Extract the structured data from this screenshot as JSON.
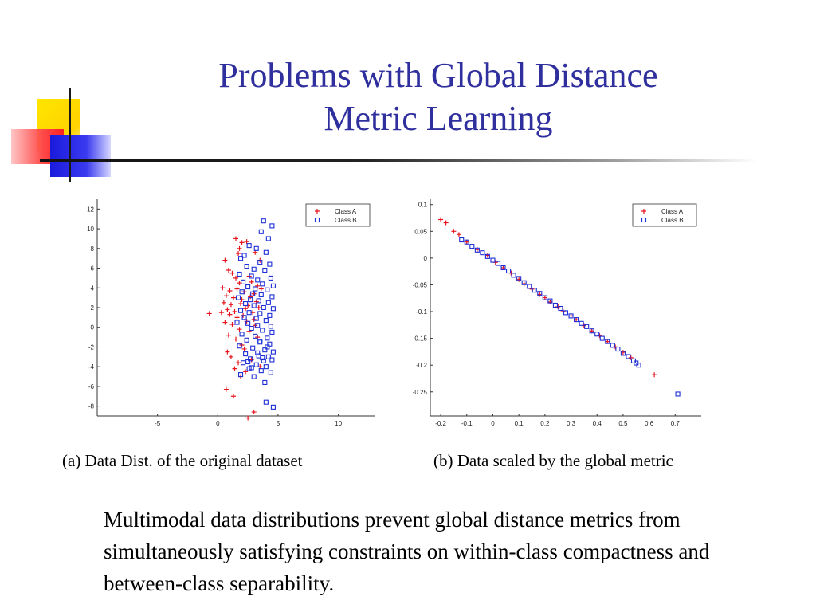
{
  "title": {
    "line1": "Problems with Global Distance",
    "line2": "Metric Learning"
  },
  "captions": {
    "a": "(a) Data Dist. of the original dataset",
    "b": "(b) Data scaled by the global metric"
  },
  "body_text": "Multimodal data distributions prevent global distance metrics from simultaneously satisfying constraints on within-class compactness and between-class separability.",
  "colors": {
    "title": "#2f2f9e",
    "class_a": "#e8141e",
    "class_b": "#1e2fd6"
  },
  "chart_data": [
    {
      "type": "scatter",
      "title": "",
      "xlabel": "",
      "ylabel": "",
      "xlim": [
        -10,
        13
      ],
      "ylim": [
        -9,
        13
      ],
      "xticks": [
        -5,
        0,
        5,
        10
      ],
      "yticks": [
        12,
        10,
        8,
        6,
        4,
        2,
        0,
        -2,
        -4,
        -6,
        -8
      ],
      "legend_position": "top-right",
      "series": [
        {
          "name": "Class A",
          "marker": "plus",
          "x": [
            1.5,
            2.0,
            1.8,
            2.4,
            1.7,
            3.1,
            3.5,
            0.6,
            0.9,
            1.2,
            1.5,
            2.6,
            1.8,
            2.8,
            3.3,
            0.4,
            1.0,
            1.6,
            2.2,
            3.0,
            3.6,
            0.7,
            1.3,
            2.0,
            2.7,
            3.2,
            0.5,
            1.1,
            1.9,
            2.5,
            3.4,
            0.8,
            1.4,
            2.3,
            2.9,
            1.0,
            1.6,
            2.1,
            3.0,
            0.6,
            1.2,
            2.4,
            3.1,
            1.8,
            2.6,
            0.9,
            1.5,
            3.3,
            2.0,
            -0.7,
            0.3,
            2.2,
            0.8,
            1.1,
            1.7,
            2.8,
            1.4,
            2.3,
            3.5,
            1.9,
            0.7,
            1.3,
            3.0,
            2.5
          ],
          "y": [
            9.0,
            8.6,
            8.0,
            8.7,
            7.5,
            7.6,
            6.8,
            6.8,
            5.8,
            5.5,
            5.0,
            5.2,
            4.5,
            4.6,
            4.2,
            4.0,
            3.7,
            3.9,
            3.6,
            3.4,
            3.9,
            3.2,
            3.0,
            2.8,
            3.1,
            2.6,
            2.5,
            2.3,
            2.4,
            2.2,
            2.0,
            1.8,
            1.6,
            1.9,
            1.5,
            1.3,
            1.0,
            1.2,
            0.8,
            0.5,
            0.3,
            0.6,
            0.2,
            -0.2,
            -0.4,
            -0.8,
            -1.2,
            -1.0,
            -1.8,
            1.4,
            1.5,
            -2.2,
            -2.5,
            -3.0,
            -3.6,
            -3.3,
            -4.2,
            -4.5,
            -4.0,
            -5.0,
            -6.3,
            -7.0,
            -8.6,
            -9.2
          ],
          "note": ""
        },
        {
          "name": "Class B",
          "marker": "square",
          "x": [
            3.8,
            4.5,
            3.6,
            4.2,
            2.6,
            3.2,
            4.0,
            2.2,
            1.9,
            3.5,
            4.3,
            2.4,
            3.0,
            3.9,
            1.8,
            2.8,
            4.4,
            3.3,
            2.1,
            3.7,
            4.6,
            2.5,
            3.1,
            4.1,
            2.0,
            2.9,
            3.6,
            4.5,
            1.7,
            2.7,
            3.4,
            4.2,
            2.3,
            3.0,
            3.8,
            4.6,
            1.9,
            2.6,
            3.5,
            4.3,
            2.2,
            3.2,
            4.0,
            1.6,
            2.5,
            3.3,
            4.4,
            2.8,
            3.7,
            4.5,
            2.0,
            3.1,
            4.1,
            2.4,
            3.5,
            4.3,
            1.8,
            2.9,
            3.9,
            4.6,
            2.3,
            3.4,
            4.2,
            2.7,
            3.8,
            2.1,
            3.2,
            4.0,
            2.6,
            3.6,
            4.4,
            1.9,
            3.0,
            3.7,
            4.5,
            2.5,
            4.1,
            3.3,
            2.8,
            3.9,
            4.0,
            4.6,
            3.5
          ],
          "y": [
            10.8,
            10.3,
            9.7,
            9.0,
            8.3,
            8.0,
            7.6,
            7.3,
            7.0,
            6.6,
            6.4,
            6.2,
            5.9,
            5.8,
            5.4,
            5.2,
            5.0,
            4.8,
            4.6,
            4.4,
            4.2,
            4.1,
            3.9,
            3.8,
            3.6,
            3.4,
            3.3,
            3.1,
            3.0,
            2.8,
            2.7,
            2.5,
            2.4,
            2.2,
            2.0,
            1.9,
            1.7,
            1.5,
            1.4,
            1.2,
            1.0,
            0.9,
            0.7,
            0.5,
            0.4,
            0.2,
            0.1,
            -0.1,
            -0.3,
            -0.5,
            -0.7,
            -0.9,
            -1.1,
            -1.3,
            -1.5,
            -1.7,
            -1.9,
            -2.1,
            -2.3,
            -2.5,
            -2.7,
            -2.9,
            -3.0,
            -3.2,
            -3.4,
            -3.6,
            -3.8,
            -4.0,
            -4.2,
            -4.4,
            -4.6,
            -4.8,
            -5.0,
            -3.1,
            -3.3,
            -3.5,
            -2.0,
            -2.6,
            -4.1,
            -5.6,
            -7.6,
            -8.1,
            -1.4
          ]
        }
      ]
    },
    {
      "type": "scatter",
      "title": "",
      "xlabel": "",
      "ylabel": "",
      "xlim": [
        -0.24,
        0.8
      ],
      "ylim": [
        -0.295,
        0.11
      ],
      "xticks": [
        -0.2,
        -0.1,
        0,
        0.1,
        0.2,
        0.3,
        0.4,
        0.5,
        0.6,
        0.7
      ],
      "xtick_labels": [
        "-0.2",
        "-0.1",
        "0",
        "0.1",
        "0.2",
        "0.3",
        "0.4",
        "0.5",
        "0.6",
        "0.7"
      ],
      "yticks": [
        0.1,
        0.05,
        0,
        -0.05,
        -0.1,
        -0.15,
        -0.2,
        -0.25
      ],
      "ytick_labels": [
        "0.1",
        "0.05",
        "0",
        "-0.05",
        "-0.1",
        "-0.15",
        "-0.2",
        "-0.25"
      ],
      "legend_position": "top-right",
      "series": [
        {
          "name": "Class A",
          "marker": "plus",
          "x": [
            -0.2,
            -0.18,
            -0.15,
            -0.13,
            -0.1,
            -0.06,
            -0.02,
            0.01,
            0.04,
            0.07,
            0.1,
            0.12,
            0.15,
            0.18,
            0.2,
            0.22,
            0.25,
            0.27,
            0.3,
            0.32,
            0.35,
            0.38,
            0.41,
            0.44,
            0.47,
            0.5,
            0.53,
            0.62
          ],
          "y": [
            0.072,
            0.066,
            0.05,
            0.044,
            0.03,
            0.016,
            0.005,
            -0.008,
            -0.018,
            -0.028,
            -0.04,
            -0.048,
            -0.058,
            -0.068,
            -0.074,
            -0.082,
            -0.091,
            -0.1,
            -0.108,
            -0.115,
            -0.126,
            -0.136,
            -0.145,
            -0.156,
            -0.166,
            -0.176,
            -0.186,
            -0.218
          ]
        },
        {
          "name": "Class B",
          "marker": "square",
          "x": [
            -0.12,
            -0.1,
            -0.08,
            -0.06,
            -0.04,
            -0.02,
            0.0,
            0.02,
            0.04,
            0.06,
            0.08,
            0.1,
            0.12,
            0.14,
            0.16,
            0.18,
            0.2,
            0.22,
            0.24,
            0.26,
            0.28,
            0.3,
            0.32,
            0.34,
            0.36,
            0.38,
            0.4,
            0.42,
            0.44,
            0.46,
            0.48,
            0.5,
            0.52,
            0.54,
            0.55,
            0.56,
            0.71
          ],
          "y": [
            0.034,
            0.03,
            0.022,
            0.015,
            0.01,
            0.003,
            -0.004,
            -0.01,
            -0.018,
            -0.024,
            -0.032,
            -0.038,
            -0.046,
            -0.053,
            -0.06,
            -0.066,
            -0.074,
            -0.08,
            -0.088,
            -0.094,
            -0.102,
            -0.108,
            -0.115,
            -0.122,
            -0.128,
            -0.136,
            -0.142,
            -0.15,
            -0.156,
            -0.163,
            -0.17,
            -0.178,
            -0.184,
            -0.192,
            -0.196,
            -0.2,
            -0.254
          ]
        }
      ]
    }
  ]
}
